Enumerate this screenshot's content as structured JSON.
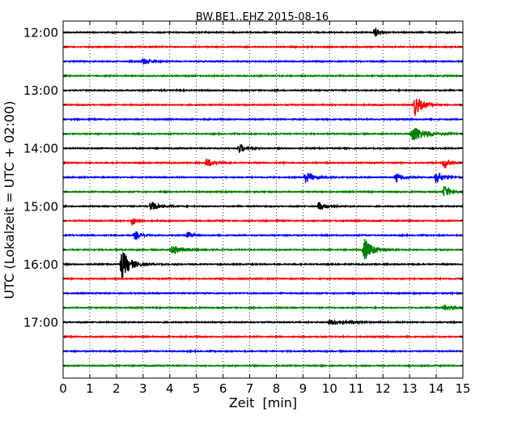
{
  "chart_data": {
    "type": "line",
    "title": "BW.BE1..EHZ 2015-08-16",
    "xlabel": "Zeit  [min]",
    "ylabel": "UTC (Lokalzeit = UTC + 02:00)",
    "xlim": [
      0,
      15
    ],
    "x_ticks": [
      "0",
      "1",
      "2",
      "3",
      "4",
      "5",
      "6",
      "7",
      "8",
      "9",
      "10",
      "11",
      "12",
      "13",
      "14",
      "15"
    ],
    "y_ticks": [
      "12:00",
      "13:00",
      "14:00",
      "15:00",
      "16:00",
      "17:00"
    ],
    "grid": "vertical dotted",
    "color_cycle": [
      "#000000",
      "#ff0000",
      "#0000ff",
      "#008000"
    ],
    "traces": [
      {
        "start": "12:00",
        "events": [
          {
            "t": 11.7,
            "amp": 1.2,
            "dur": 0.25
          }
        ]
      },
      {
        "start": "12:15",
        "events": []
      },
      {
        "start": "12:30",
        "events": [
          {
            "t": 3.0,
            "amp": 0.7,
            "dur": 0.4
          }
        ]
      },
      {
        "start": "12:45",
        "events": []
      },
      {
        "start": "13:00",
        "events": []
      },
      {
        "start": "13:15",
        "events": [
          {
            "t": 13.2,
            "amp": 2.2,
            "dur": 0.5
          }
        ]
      },
      {
        "start": "13:30",
        "events": []
      },
      {
        "start": "13:45",
        "events": [
          {
            "t": 13.1,
            "amp": 1.8,
            "dur": 0.9
          }
        ]
      },
      {
        "start": "14:00",
        "events": [
          {
            "t": 6.6,
            "amp": 1.0,
            "dur": 0.4
          }
        ]
      },
      {
        "start": "14:15",
        "events": [
          {
            "t": 5.4,
            "amp": 1.0,
            "dur": 0.4
          },
          {
            "t": 14.3,
            "amp": 1.2,
            "dur": 0.3
          }
        ]
      },
      {
        "start": "14:30",
        "events": [
          {
            "t": 9.1,
            "amp": 1.1,
            "dur": 0.6
          },
          {
            "t": 12.5,
            "amp": 0.9,
            "dur": 0.5
          },
          {
            "t": 14.0,
            "amp": 1.3,
            "dur": 0.5
          }
        ]
      },
      {
        "start": "14:45",
        "events": [
          {
            "t": 14.3,
            "amp": 1.3,
            "dur": 0.5
          }
        ]
      },
      {
        "start": "15:00",
        "events": [
          {
            "t": 3.3,
            "amp": 1.0,
            "dur": 0.5
          },
          {
            "t": 9.6,
            "amp": 1.0,
            "dur": 0.4
          }
        ]
      },
      {
        "start": "15:15",
        "events": [
          {
            "t": 2.6,
            "amp": 1.2,
            "dur": 0.2
          }
        ]
      },
      {
        "start": "15:30",
        "events": [
          {
            "t": 2.7,
            "amp": 0.9,
            "dur": 0.4
          },
          {
            "t": 4.7,
            "amp": 1.0,
            "dur": 0.2
          }
        ]
      },
      {
        "start": "15:45",
        "events": [
          {
            "t": 4.1,
            "amp": 1.0,
            "dur": 0.6
          },
          {
            "t": 11.3,
            "amp": 2.5,
            "dur": 0.6
          }
        ]
      },
      {
        "start": "16:00",
        "events": [
          {
            "t": 2.2,
            "amp": 3.0,
            "dur": 0.6
          }
        ]
      },
      {
        "start": "16:15",
        "events": []
      },
      {
        "start": "16:30",
        "events": []
      },
      {
        "start": "16:45",
        "events": [
          {
            "t": 14.3,
            "amp": 0.6,
            "dur": 0.6
          }
        ]
      },
      {
        "start": "17:00",
        "events": [
          {
            "t": 10.0,
            "amp": 0.5,
            "dur": 1.2
          }
        ]
      },
      {
        "start": "17:15",
        "events": []
      },
      {
        "start": "17:30",
        "events": []
      },
      {
        "start": "17:45",
        "events": []
      }
    ]
  }
}
